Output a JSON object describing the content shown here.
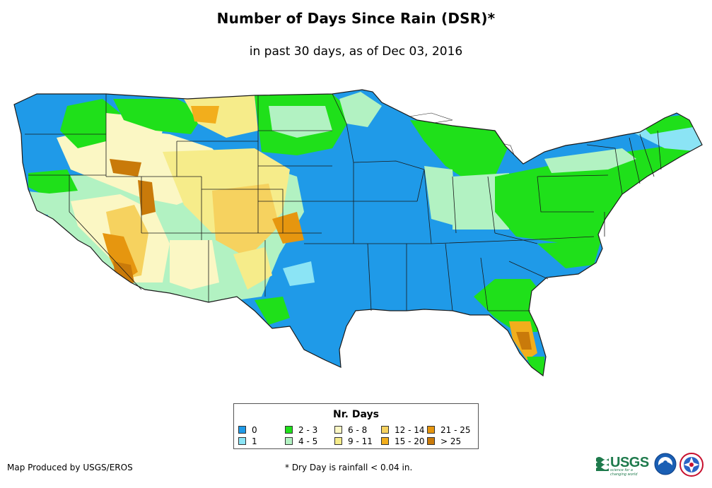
{
  "title": "Number of Days Since Rain (DSR)*",
  "subtitle": "in past 30 days, as of Dec 03, 2016",
  "legend": {
    "title": "Nr. Days",
    "items": [
      {
        "label": "0",
        "color": "#1f9ae8"
      },
      {
        "label": "1",
        "color": "#8be4f5"
      },
      {
        "label": "2 - 3",
        "color": "#1fe01a"
      },
      {
        "label": "4 - 5",
        "color": "#b2f2c2"
      },
      {
        "label": "6 - 8",
        "color": "#fbf7c4"
      },
      {
        "label": "9 - 11",
        "color": "#f6ec8a"
      },
      {
        "label": "12 - 14",
        "color": "#f6d25f"
      },
      {
        "label": "15 - 20",
        "color": "#f2ae1c"
      },
      {
        "label": "21 - 25",
        "color": "#e6960f"
      },
      {
        "label": "> 25",
        "color": "#c97a0a"
      }
    ]
  },
  "footer": {
    "producer": "Map Produced by USGS/EROS",
    "note": "* Dry Day is rainfall < 0.04 in."
  },
  "logos": {
    "usgs": "USGS",
    "usgs_tagline": "science for a changing world"
  },
  "icons": {
    "noaa": "noaa-logo-icon",
    "nws": "nws-logo-icon"
  }
}
